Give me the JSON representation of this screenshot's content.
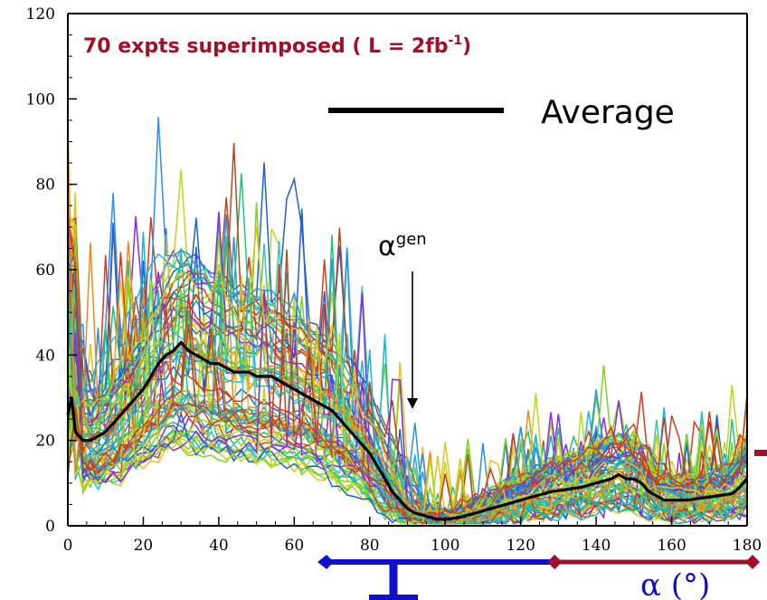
{
  "chart_data": {
    "type": "line",
    "title": "70 expts superimposed ( L = 2fb",
    "title_superscript": "-1",
    "title_tail": ")",
    "annotation": {
      "text": "α",
      "superscript": "gen",
      "x": 90
    },
    "legend": [
      {
        "label": "Average",
        "color": "#000000"
      }
    ],
    "xlabel": "α (°)",
    "xlim": [
      0,
      180
    ],
    "ylim": [
      0,
      120
    ],
    "x_ticks": [
      0,
      20,
      40,
      60,
      80,
      100,
      120,
      140,
      160,
      180
    ],
    "y_ticks": [
      0,
      20,
      40,
      60,
      80,
      100,
      120
    ],
    "grid": false,
    "experiments_count": 70,
    "average_series": {
      "name": "Average",
      "x": [
        0,
        1,
        2,
        4,
        6,
        8,
        10,
        12,
        14,
        16,
        18,
        20,
        22,
        24,
        26,
        28,
        29,
        30,
        32,
        34,
        36,
        38,
        40,
        42,
        44,
        46,
        48,
        50,
        52,
        54,
        56,
        58,
        60,
        62,
        64,
        66,
        68,
        70,
        72,
        74,
        76,
        78,
        80,
        82,
        84,
        86,
        88,
        90,
        92,
        94,
        96,
        98,
        100,
        104,
        108,
        112,
        116,
        120,
        124,
        128,
        132,
        136,
        140,
        144,
        146,
        148,
        150,
        152,
        154,
        156,
        158,
        160,
        164,
        168,
        172,
        176,
        178,
        180
      ],
      "y": [
        26,
        30,
        22,
        20,
        20,
        21,
        22,
        24,
        26,
        28,
        30,
        32,
        35,
        38,
        40,
        41,
        42,
        43,
        41,
        40,
        39,
        38,
        38,
        37,
        36,
        36,
        36,
        35,
        35,
        35,
        34,
        33,
        32,
        31,
        30,
        29,
        28,
        27,
        25,
        23,
        21,
        19,
        17,
        14,
        11,
        8,
        6,
        4,
        3,
        2.5,
        2,
        1.5,
        1.5,
        2,
        3,
        4,
        5,
        6,
        7,
        8,
        8.5,
        9,
        10,
        11,
        12,
        11,
        11,
        10,
        8,
        7,
        6,
        6,
        6,
        6.5,
        7,
        7.5,
        9,
        11
      ]
    },
    "bar_colors": {
      "blue_range": [
        70,
        128
      ],
      "red_range": [
        130,
        180
      ],
      "blue": "#1010c8",
      "red": "#a0102a"
    },
    "palette": [
      "#1f5fd6",
      "#2a8ff0",
      "#19b7d8",
      "#21c27a",
      "#7ed321",
      "#b9d81a",
      "#e0c41a",
      "#f08a1c",
      "#d9381e",
      "#b8471a",
      "#8a2be2",
      "#3ec8a8"
    ]
  }
}
